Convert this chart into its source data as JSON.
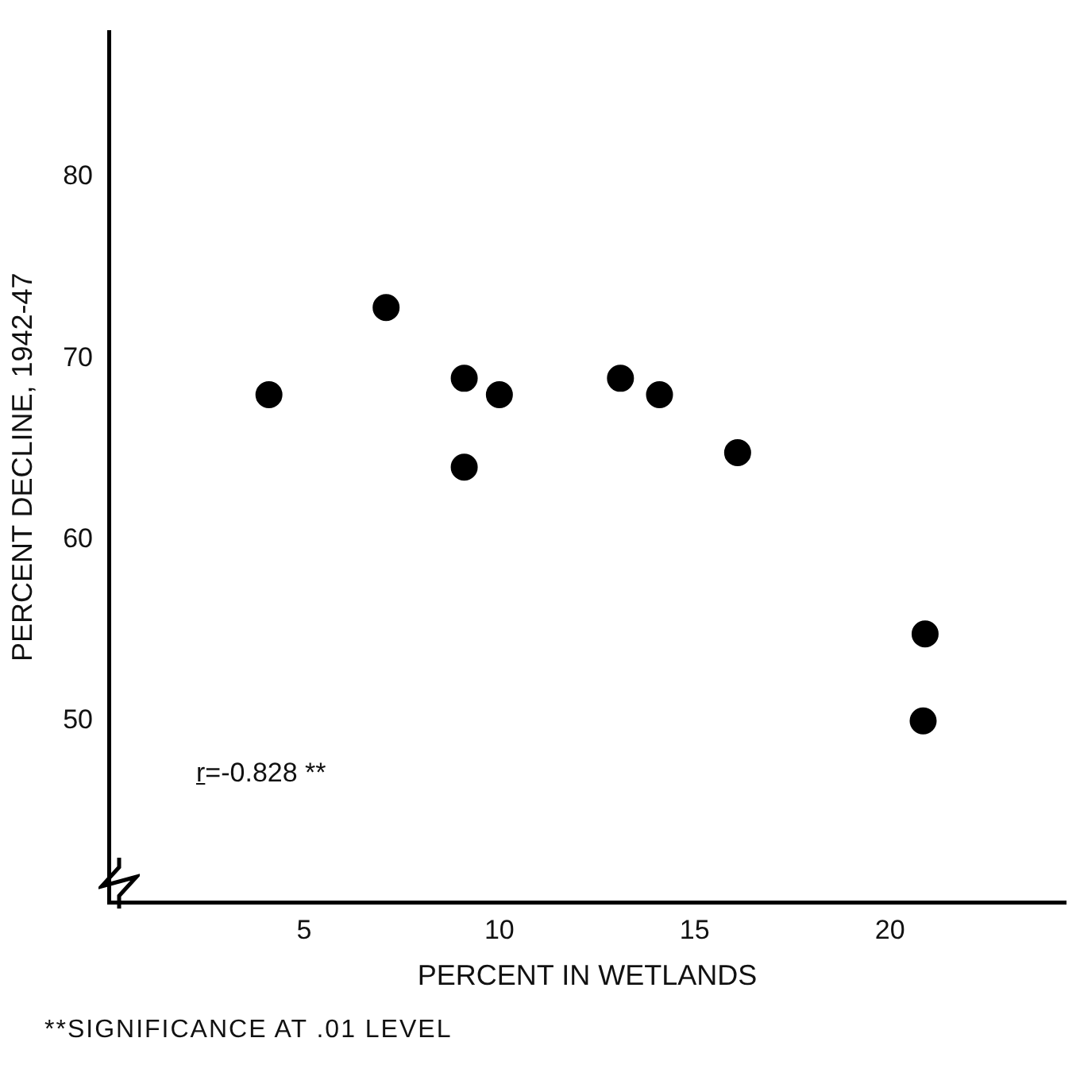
{
  "chart_data": {
    "type": "scatter",
    "xlabel": "PERCENT IN WETLANDS",
    "ylabel": "PERCENT DECLINE, 1942-47",
    "x": [
      4.1,
      7.1,
      9.1,
      9.1,
      10.0,
      13.1,
      14.1,
      16.1,
      20.9,
      20.85
    ],
    "values": [
      68.0,
      72.8,
      68.9,
      64.0,
      68.0,
      68.9,
      68.0,
      64.8,
      54.8,
      50.0
    ],
    "color": "#000000",
    "marker": "circle",
    "xlim": [
      0,
      24.5
    ],
    "xticks": [
      5,
      10,
      15,
      20
    ],
    "ylim": [
      40,
      88
    ],
    "yticks": [
      50,
      60,
      70,
      80
    ],
    "grid": false,
    "legend": false,
    "annotations": [
      "r=-0.828 **",
      "**SIGNIFICANCE AT .01 LEVEL"
    ]
  }
}
